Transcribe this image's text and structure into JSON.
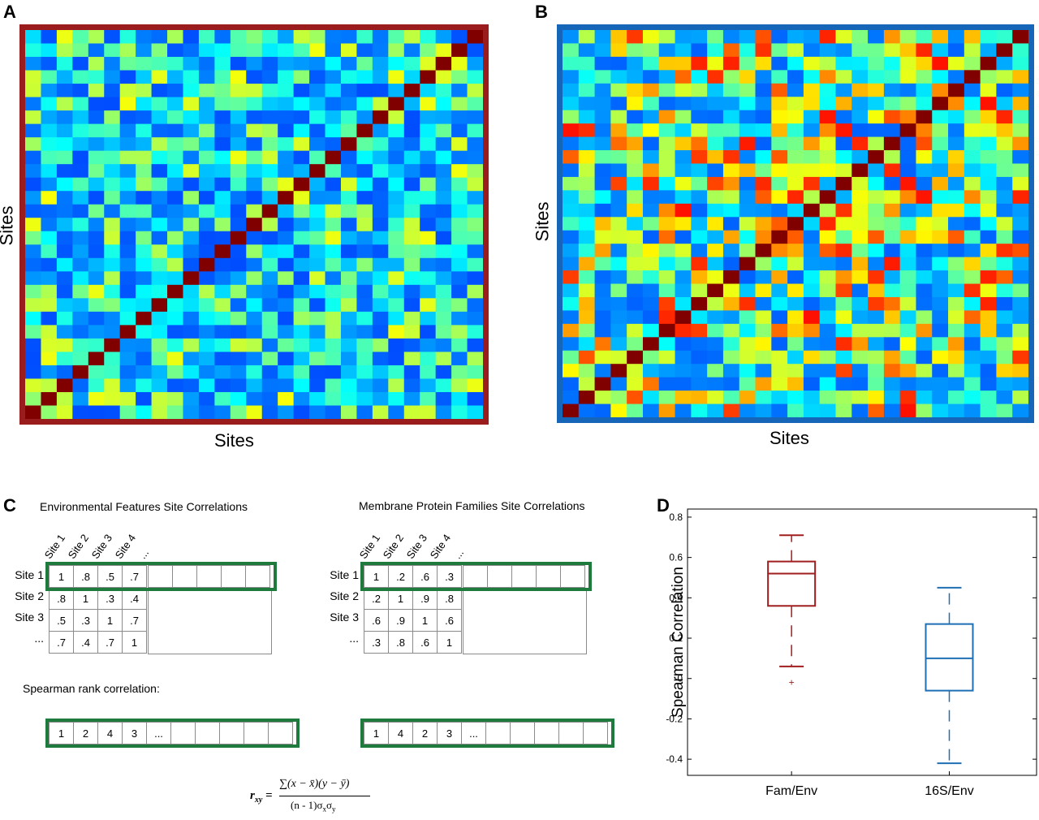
{
  "panels": {
    "a": {
      "letter": "A",
      "xlabel": "Sites",
      "ylabel": "Sites",
      "border_color": "#9b1c1c"
    },
    "b": {
      "letter": "B",
      "xlabel": "Sites",
      "ylabel": "Sites",
      "border_color": "#1565b8"
    },
    "c": {
      "letter": "C",
      "left_title": "Environmental Features Site Correlations",
      "right_title": "Membrane Protein Families Site Correlations",
      "col_headers": [
        "Site 1",
        "Site 2",
        "Site 3",
        "Site 4",
        "..."
      ],
      "row_headers": [
        "Site 1",
        "Site 2",
        "Site 3",
        "..."
      ],
      "left_matrix": [
        [
          "1",
          ".8",
          ".5",
          ".7"
        ],
        [
          ".8",
          "1",
          ".3",
          ".4"
        ],
        [
          ".5",
          ".3",
          "1",
          ".7"
        ],
        [
          ".7",
          ".4",
          ".7",
          "1"
        ]
      ],
      "right_matrix": [
        [
          "1",
          ".2",
          ".6",
          ".3"
        ],
        [
          ".2",
          "1",
          ".9",
          ".8"
        ],
        [
          ".6",
          ".9",
          "1",
          ".6"
        ],
        [
          ".3",
          ".8",
          ".6",
          "1"
        ]
      ],
      "rank_label": "Spearman rank correlation:",
      "left_ranks": [
        "1",
        "2",
        "4",
        "3",
        "..."
      ],
      "right_ranks": [
        "1",
        "4",
        "2",
        "3",
        "..."
      ],
      "formula": {
        "lhs": "r",
        "lhs_sub": "xy",
        "numerator": "∑(x − x̄)(y − ȳ)",
        "denominator": "(n - 1)σ",
        "den_sub1": "x",
        "den_mid": "σ",
        "den_sub2": "y"
      },
      "highlight_color": "#1f7a3e"
    },
    "d": {
      "letter": "D"
    }
  },
  "chart_data": {
    "type": "box",
    "ylabel": "Spearman Correlation",
    "ylim": [
      -0.48,
      0.84
    ],
    "yticks": [
      "-0.4",
      "-0.2",
      "0",
      "0.2",
      "0.4",
      "0.6",
      "0.8"
    ],
    "categories": [
      "Fam/Env",
      "16S/Env"
    ],
    "series": [
      {
        "whisker_low": 0.06,
        "q1": 0.36,
        "median": 0.52,
        "q3": 0.58,
        "whisker_high": 0.71,
        "outliers": [
          -0.02
        ],
        "color": "#a01e1e"
      },
      {
        "whisker_low": -0.42,
        "q1": -0.06,
        "median": 0.1,
        "q3": 0.27,
        "whisker_high": 0.45,
        "outliers": [],
        "color": "#1f6fb5"
      }
    ]
  }
}
